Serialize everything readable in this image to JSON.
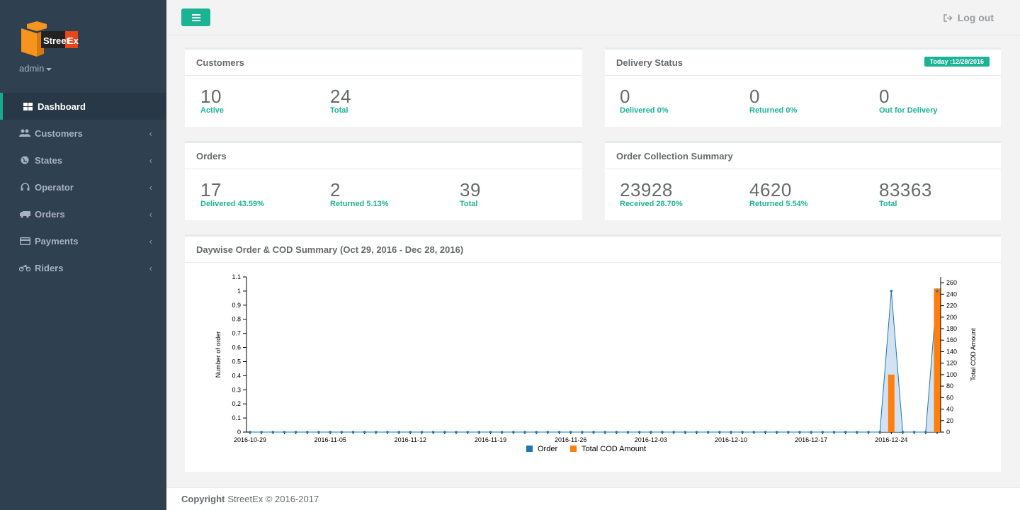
{
  "brand": {
    "logo_text_1": "Street",
    "logo_text_2": "Ex",
    "user": "admin"
  },
  "sidebar": {
    "items": [
      {
        "label": "Dashboard",
        "icon": "th-large-icon",
        "active": true
      },
      {
        "label": "Customers",
        "icon": "users-icon"
      },
      {
        "label": "States",
        "icon": "globe-icon"
      },
      {
        "label": "Operator",
        "icon": "headphones-icon"
      },
      {
        "label": "Orders",
        "icon": "truck-icon"
      },
      {
        "label": "Payments",
        "icon": "credit-card-icon"
      },
      {
        "label": "Riders",
        "icon": "motorcycle-icon"
      }
    ]
  },
  "topbar": {
    "logout": "Log out"
  },
  "customers": {
    "title": "Customers",
    "active_num": "10",
    "active_lbl": "Active",
    "total_num": "24",
    "total_lbl": "Total"
  },
  "delivery": {
    "title": "Delivery Status",
    "badge": "Today :12/28/2016",
    "delivered_num": "0",
    "delivered_lbl": "Delivered 0%",
    "returned_num": "0",
    "returned_lbl": "Returned 0%",
    "out_num": "0",
    "out_lbl": "Out for Delivery"
  },
  "orders": {
    "title": "Orders",
    "delivered_num": "17",
    "delivered_lbl": "Delivered 43.59%",
    "returned_num": "2",
    "returned_lbl": "Returned 5.13%",
    "total_num": "39",
    "total_lbl": "Total"
  },
  "collection": {
    "title": "Order Collection Summary",
    "received_num": "23928",
    "received_lbl": "Received 28.70%",
    "returned_num": "4620",
    "returned_lbl": "Returned 5.54%",
    "total_num": "83363",
    "total_lbl": "Total"
  },
  "chart_panel": {
    "title": "Daywise Order & COD Summary (Oct 29, 2016 - Dec 28, 2016)"
  },
  "chart_data": {
    "type": "line",
    "x_tick_labels": [
      "2016-10-29",
      "2016-11-05",
      "2016-11-12",
      "2016-11-19",
      "2016-11-26",
      "2016-12-03",
      "2016-12-10",
      "2016-12-17",
      "2016-12-24"
    ],
    "ylabel": "Number of order",
    "y2label": "Total COD Amount",
    "ylim": [
      0,
      1.1
    ],
    "y2lim": [
      0,
      270
    ],
    "y_ticks": [
      "0",
      "0.1",
      "0.2",
      "0.3",
      "0.4",
      "0.5",
      "0.6",
      "0.7",
      "0.8",
      "0.9",
      "1",
      "1.1"
    ],
    "y2_ticks": [
      "0",
      "20",
      "40",
      "60",
      "80",
      "100",
      "120",
      "140",
      "160",
      "180",
      "200",
      "220",
      "240",
      "260"
    ],
    "series": [
      {
        "name": "Order",
        "type": "area",
        "color": "#1f77b4",
        "points": [
          [
            "2016-12-24",
            1
          ],
          [
            "2016-12-28",
            1
          ]
        ]
      },
      {
        "name": "Total COD Amount",
        "type": "bar",
        "color": "#ff7f0e",
        "points": [
          [
            "2016-12-24",
            100
          ],
          [
            "2016-12-28",
            250
          ]
        ]
      }
    ],
    "legend": "bottom"
  },
  "footer": {
    "bold": "Copyright",
    "text": "StreetEx © 2016-2017"
  }
}
